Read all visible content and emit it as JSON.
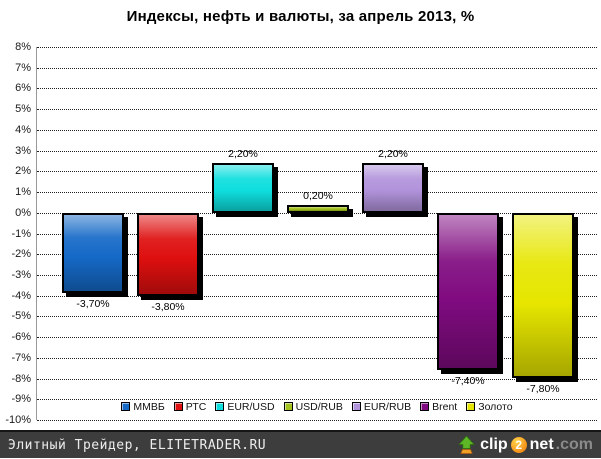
{
  "title": "Индексы, нефть и валюты, за апрель 2013, %",
  "chart_data": {
    "type": "bar",
    "title": "Индексы, нефть и валюты, за апрель 2013, %",
    "categories": [
      "ММВБ",
      "РТС",
      "EUR/USD",
      "USD/RUB",
      "EUR/RUB",
      "Brent",
      "Золото"
    ],
    "values": [
      -3.7,
      -3.8,
      2.2,
      0.2,
      2.2,
      -7.4,
      -7.8
    ],
    "data_labels": [
      "-3,70%",
      "-3,80%",
      "2,20%",
      "0,20%",
      "2,20%",
      "-7,40%",
      "-7,80%"
    ],
    "colors": [
      "#1569C7",
      "#DE0F0F",
      "#0FDEDE",
      "#A3C21D",
      "#B193DB",
      "#800B80",
      "#E6E600"
    ],
    "ylim": [
      -10,
      8
    ],
    "ytick_step": 1,
    "ytick_labels": [
      "8%",
      "7%",
      "6%",
      "5%",
      "4%",
      "3%",
      "2%",
      "1%",
      "0%",
      "-1%",
      "-2%",
      "-3%",
      "-4%",
      "-5%",
      "-6%",
      "-7%",
      "-8%",
      "-9%",
      "-10%"
    ],
    "grid": "horizontal-dotted",
    "legend_position": "bottom-inside",
    "legend_entries": [
      "ММВБ",
      "РТС",
      "EUR/USD",
      "USD/RUB",
      "EUR/RUB",
      "Brent",
      "Золото"
    ]
  },
  "footer": {
    "site_label": "Элитный Трейдер, ELITETRADER.RU",
    "watermark": {
      "clip": "clip",
      "two": "2",
      "net": "net",
      "dotcom": ".com"
    }
  }
}
